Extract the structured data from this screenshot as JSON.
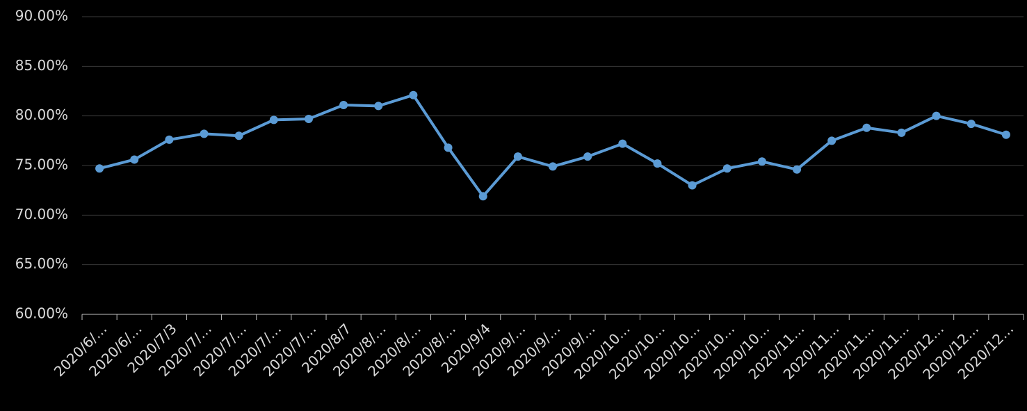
{
  "chart_data": {
    "type": "line",
    "categories": [
      "2020/6/…",
      "2020/6/…",
      "2020/7/3",
      "2020/7/…",
      "2020/7/…",
      "2020/7/…",
      "2020/7/…",
      "2020/8/7",
      "2020/8/…",
      "2020/8/…",
      "2020/8/…",
      "2020/9/4",
      "2020/9/…",
      "2020/9/…",
      "2020/9/…",
      "2020/10…",
      "2020/10…",
      "2020/10…",
      "2020/10…",
      "2020/10…",
      "2020/11…",
      "2020/11…",
      "2020/11…",
      "2020/11…",
      "2020/12…",
      "2020/12…",
      "2020/12…"
    ],
    "series": [
      {
        "color": "#5b9bd5",
        "values": [
          74.7,
          75.6,
          77.6,
          78.2,
          78.0,
          79.6,
          79.7,
          81.1,
          81.0,
          82.1,
          76.8,
          71.9,
          75.9,
          74.9,
          75.9,
          77.2,
          75.2,
          73.0,
          74.7,
          75.4,
          74.6,
          77.5,
          78.8,
          78.3,
          80.0,
          79.2,
          78.1
        ]
      }
    ],
    "ylim": [
      60,
      90
    ],
    "yticks": [
      {
        "value": 60,
        "label": "60.00%"
      },
      {
        "value": 65,
        "label": "65.00%"
      },
      {
        "value": 70,
        "label": "70.00%"
      },
      {
        "value": 75,
        "label": "75.00%"
      },
      {
        "value": 80,
        "label": "80.00%"
      },
      {
        "value": 85,
        "label": "85.00%"
      },
      {
        "value": 90,
        "label": "90.00%"
      }
    ],
    "grid": true
  }
}
